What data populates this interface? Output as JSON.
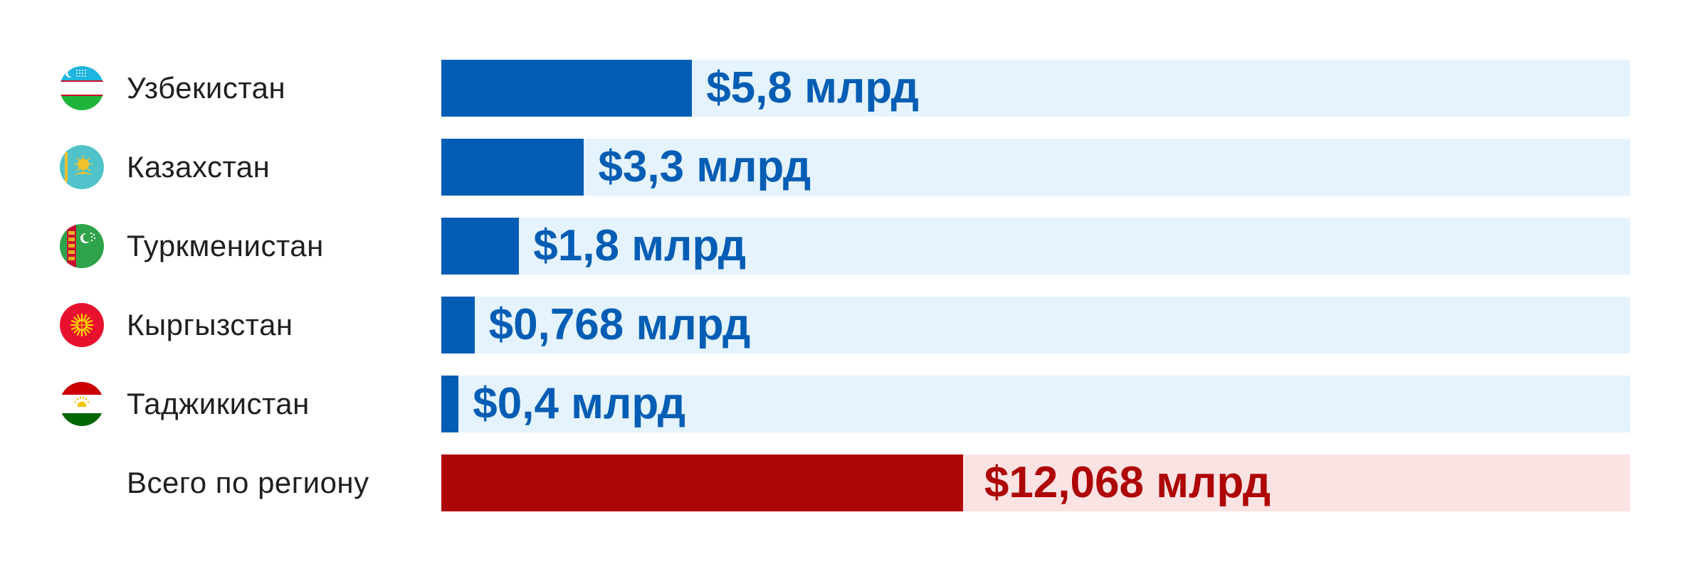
{
  "colors": {
    "bar_blue": "#045DB4",
    "track_blue": "#E4F3FD",
    "bar_red": "#AE0505",
    "track_red": "#FCE3E3",
    "text": "#1F1F1F"
  },
  "chart_data": {
    "type": "bar",
    "orientation": "horizontal",
    "title": "",
    "xlabel": "",
    "ylabel": "",
    "xlim": [
      0,
      27.5
    ],
    "grid": false,
    "categories": [
      "Узбекистан",
      "Казахстан",
      "Туркменистан",
      "Кыргызстан",
      "Таджикистан",
      "Всего по региону"
    ],
    "values": [
      5.8,
      3.3,
      1.8,
      0.768,
      0.4,
      12.068
    ],
    "value_labels": [
      "$5,8 млрд",
      "$3,3 млрд",
      "$1,8 млрд",
      "$0,768 млрд",
      "$0,4 млрд",
      "$12,068 млрд"
    ],
    "icons": [
      "uzbekistan-flag-icon",
      "kazakhstan-flag-icon",
      "turkmenistan-flag-icon",
      "kyrgyzstan-flag-icon",
      "tajikistan-flag-icon",
      ""
    ],
    "highlight": [
      false,
      false,
      false,
      false,
      false,
      true
    ]
  }
}
